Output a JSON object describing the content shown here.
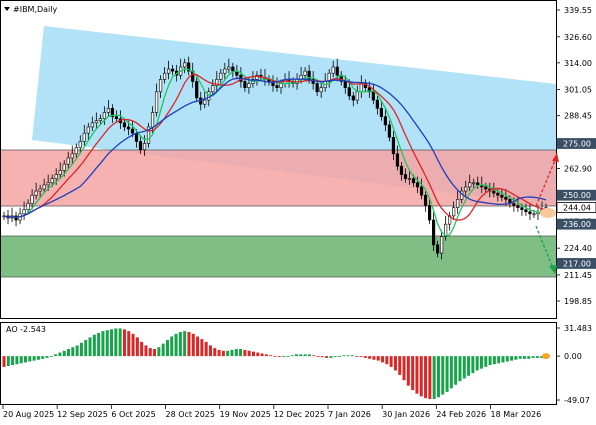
{
  "header": {
    "symbol_label": "#IBM,Daily",
    "menu_arrow_icon": "triangle-down-icon"
  },
  "indicator": {
    "label": "AO -2.543",
    "scale": [
      "31.483",
      "0.00",
      "-49.07"
    ]
  },
  "price_axis": {
    "ticks": [
      "339.55",
      "326.60",
      "314.00",
      "301.05",
      "288.45",
      "275.00",
      "262.90",
      "250.00",
      "237.35",
      "224.40",
      "211.45",
      "198.85"
    ],
    "tags": [
      {
        "label": "275.00",
        "bg": "#3a4f66"
      },
      {
        "label": "250.00",
        "bg": "#3a4f66"
      },
      {
        "label": "244.04",
        "bg": "#ffffff"
      },
      {
        "label": "236.00",
        "bg": "#3a4f66"
      },
      {
        "label": "217.00",
        "bg": "#3a4f66"
      }
    ]
  },
  "time_axis": {
    "ticks": [
      "20 Aug 2025",
      "12 Sep 2025",
      "6 Oct 2025",
      "28 Oct 2025",
      "19 Nov 2025",
      "12 Dec 2025",
      "7 Jan 2026",
      "30 Jan 2026",
      "24 Feb 2026",
      "18 Mar 2026"
    ]
  },
  "chart_data": {
    "type": "candlestick",
    "title": "#IBM,Daily",
    "price_range": [
      198.85,
      339.55
    ],
    "levels": [
      275.0,
      250.0,
      236.0,
      217.0
    ],
    "last_price": 244.04,
    "price_series": {
      "name": "IBM daily close (approx.)",
      "values": [
        240,
        239,
        240,
        238,
        241,
        243,
        246,
        250,
        252,
        253,
        255,
        256,
        258,
        260,
        262,
        265,
        268,
        270,
        273,
        276,
        280,
        283,
        285,
        286,
        287,
        290,
        292,
        288,
        287,
        285,
        283,
        282,
        280,
        276,
        272,
        275,
        283,
        290,
        300,
        306,
        309,
        311,
        310,
        308,
        312,
        314,
        310,
        305,
        297,
        294,
        296,
        300,
        303,
        306,
        309,
        311,
        312,
        310,
        308,
        305,
        302,
        304,
        306,
        308,
        307,
        306,
        305,
        303,
        302,
        304,
        306,
        305,
        304,
        306,
        308,
        310,
        306,
        304,
        300,
        302,
        305,
        309,
        312,
        308,
        305,
        302,
        298,
        296,
        300,
        304,
        302,
        300,
        296,
        292,
        288,
        284,
        278,
        270,
        264,
        260,
        258,
        258,
        256,
        254,
        250,
        245,
        238,
        226,
        222,
        230,
        236,
        240,
        244,
        248,
        252,
        254,
        256,
        256,
        255,
        254,
        253,
        252,
        251,
        250,
        249,
        248,
        246,
        245,
        244,
        243,
        242,
        241,
        241,
        242,
        243,
        244
      ]
    },
    "moving_averages": [
      {
        "color": "#22c55e"
      },
      {
        "color": "#dc2626"
      },
      {
        "color": "#1d3fbf"
      }
    ],
    "channel_color": "#aee0f8",
    "resistance_zone_color": "#f5a3a3",
    "support_zone_color": "#7fbf85",
    "awesome_oscillator": {
      "name": "AO",
      "last": -2.543,
      "range": [
        -49.07,
        31.483
      ],
      "values": [
        -12,
        -11,
        -10,
        -9,
        -8,
        -7,
        -6,
        -5,
        -4,
        -3,
        -2,
        0,
        2,
        4,
        6,
        8,
        10,
        12,
        15,
        18,
        21,
        24,
        26,
        28,
        29,
        30,
        31,
        31,
        30,
        28,
        25,
        21,
        16,
        12,
        9,
        8,
        10,
        14,
        18,
        22,
        25,
        27,
        28,
        27,
        25,
        22,
        19,
        16,
        12,
        9,
        7,
        6,
        6,
        7,
        8,
        8,
        7,
        6,
        5,
        4,
        3,
        2,
        1,
        0,
        -1,
        -1,
        0,
        1,
        2,
        2,
        2,
        2,
        1,
        0,
        -1,
        -2,
        -2,
        -1,
        0,
        1,
        1,
        1,
        0,
        -1,
        -2,
        -3,
        -4,
        -5,
        -7,
        -9,
        -12,
        -16,
        -21,
        -27,
        -33,
        -38,
        -42,
        -45,
        -47,
        -48,
        -48,
        -46,
        -43,
        -40,
        -36,
        -32,
        -28,
        -25,
        -22,
        -19,
        -16,
        -14,
        -12,
        -10,
        -9,
        -8,
        -7,
        -6,
        -5,
        -4,
        -3,
        -3,
        -3,
        -2,
        -2,
        -2,
        -3
      ],
      "up_color": "#16a34a",
      "down_color": "#dc2626"
    }
  }
}
